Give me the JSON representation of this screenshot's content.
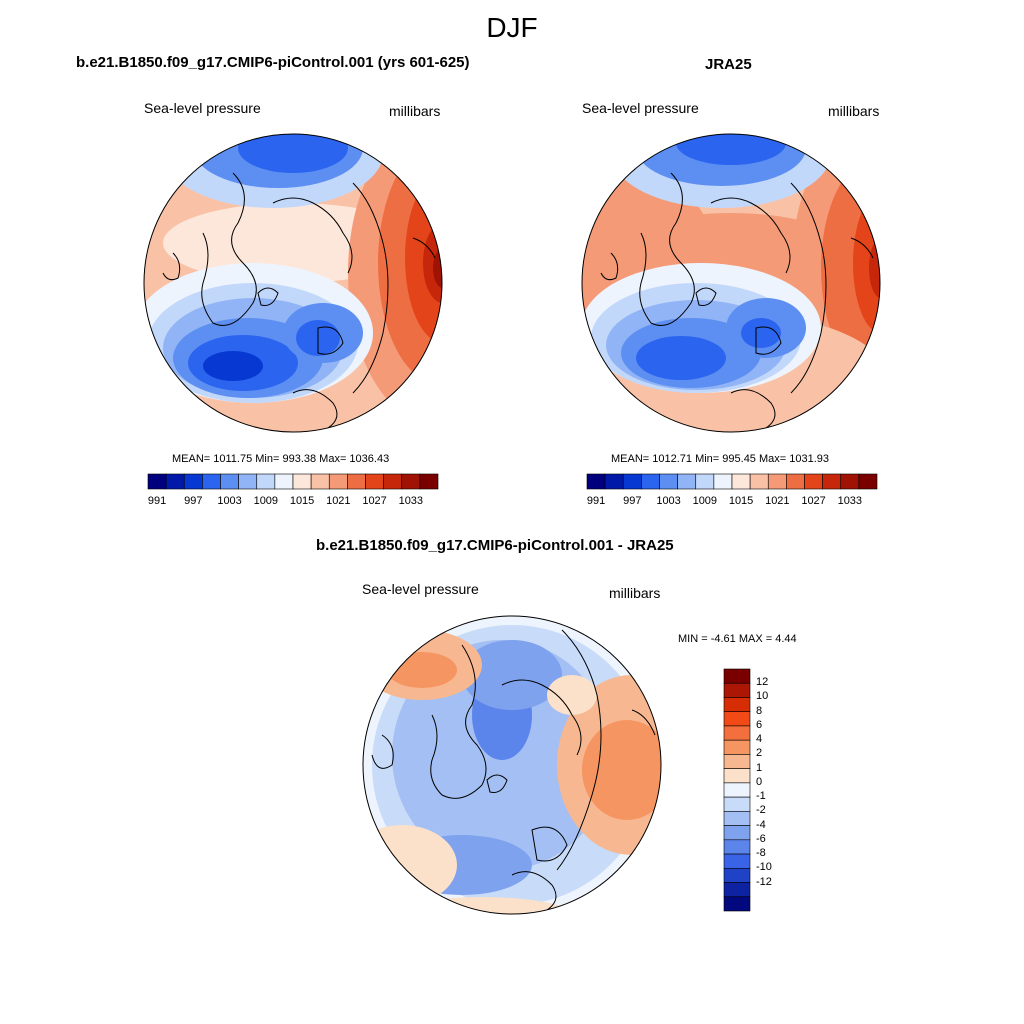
{
  "title": "DJF",
  "panels": [
    {
      "title": "b.e21.B1850.f09_g17.CMIP6-piControl.001 (yrs 601-625)",
      "left_label": "Sea-level pressure",
      "right_label": "millibars",
      "stats": "MEAN= 1011.75  Min= 993.38  Max= 1036.43"
    },
    {
      "title": "JRA25",
      "left_label": "Sea-level pressure",
      "right_label": "millibars",
      "stats": "MEAN= 1012.71  Min= 995.45  Max= 1031.93"
    },
    {
      "title": "b.e21.B1850.f09_g17.CMIP6-piControl.001 - JRA25",
      "left_label": "Sea-level pressure",
      "right_label": "millibars",
      "stats": "MIN =  -4.61 MAX =   4.44"
    }
  ],
  "colorbar_slp": {
    "colors": [
      "#00007f",
      "#0019a8",
      "#0838d2",
      "#2b64ee",
      "#5d8ff2",
      "#91b4f6",
      "#c2d8fa",
      "#eef4fd",
      "#fde6da",
      "#f9c2a7",
      "#f59a76",
      "#ee6e44",
      "#e44419",
      "#c62609",
      "#a01204",
      "#7a0000"
    ],
    "labels": [
      "991",
      "997",
      "1003",
      "1009",
      "1015",
      "1021",
      "1027",
      "1033"
    ]
  },
  "colorbar_diff": {
    "colors": [
      "#7a0000",
      "#ab1704",
      "#d62d05",
      "#f24a16",
      "#f3703e",
      "#f59562",
      "#f7b891",
      "#fbe0ca",
      "#eef4fd",
      "#c8dbf8",
      "#a3bff3",
      "#7fa2ef",
      "#5c85eb",
      "#3a64e8",
      "#1f42c7",
      "#0d23a2",
      "#02097f"
    ],
    "labels": [
      "12",
      "10",
      "8",
      "6",
      "4",
      "2",
      "1",
      "0",
      "-1",
      "-2",
      "-4",
      "-6",
      "-8",
      "-10",
      "-12"
    ]
  }
}
